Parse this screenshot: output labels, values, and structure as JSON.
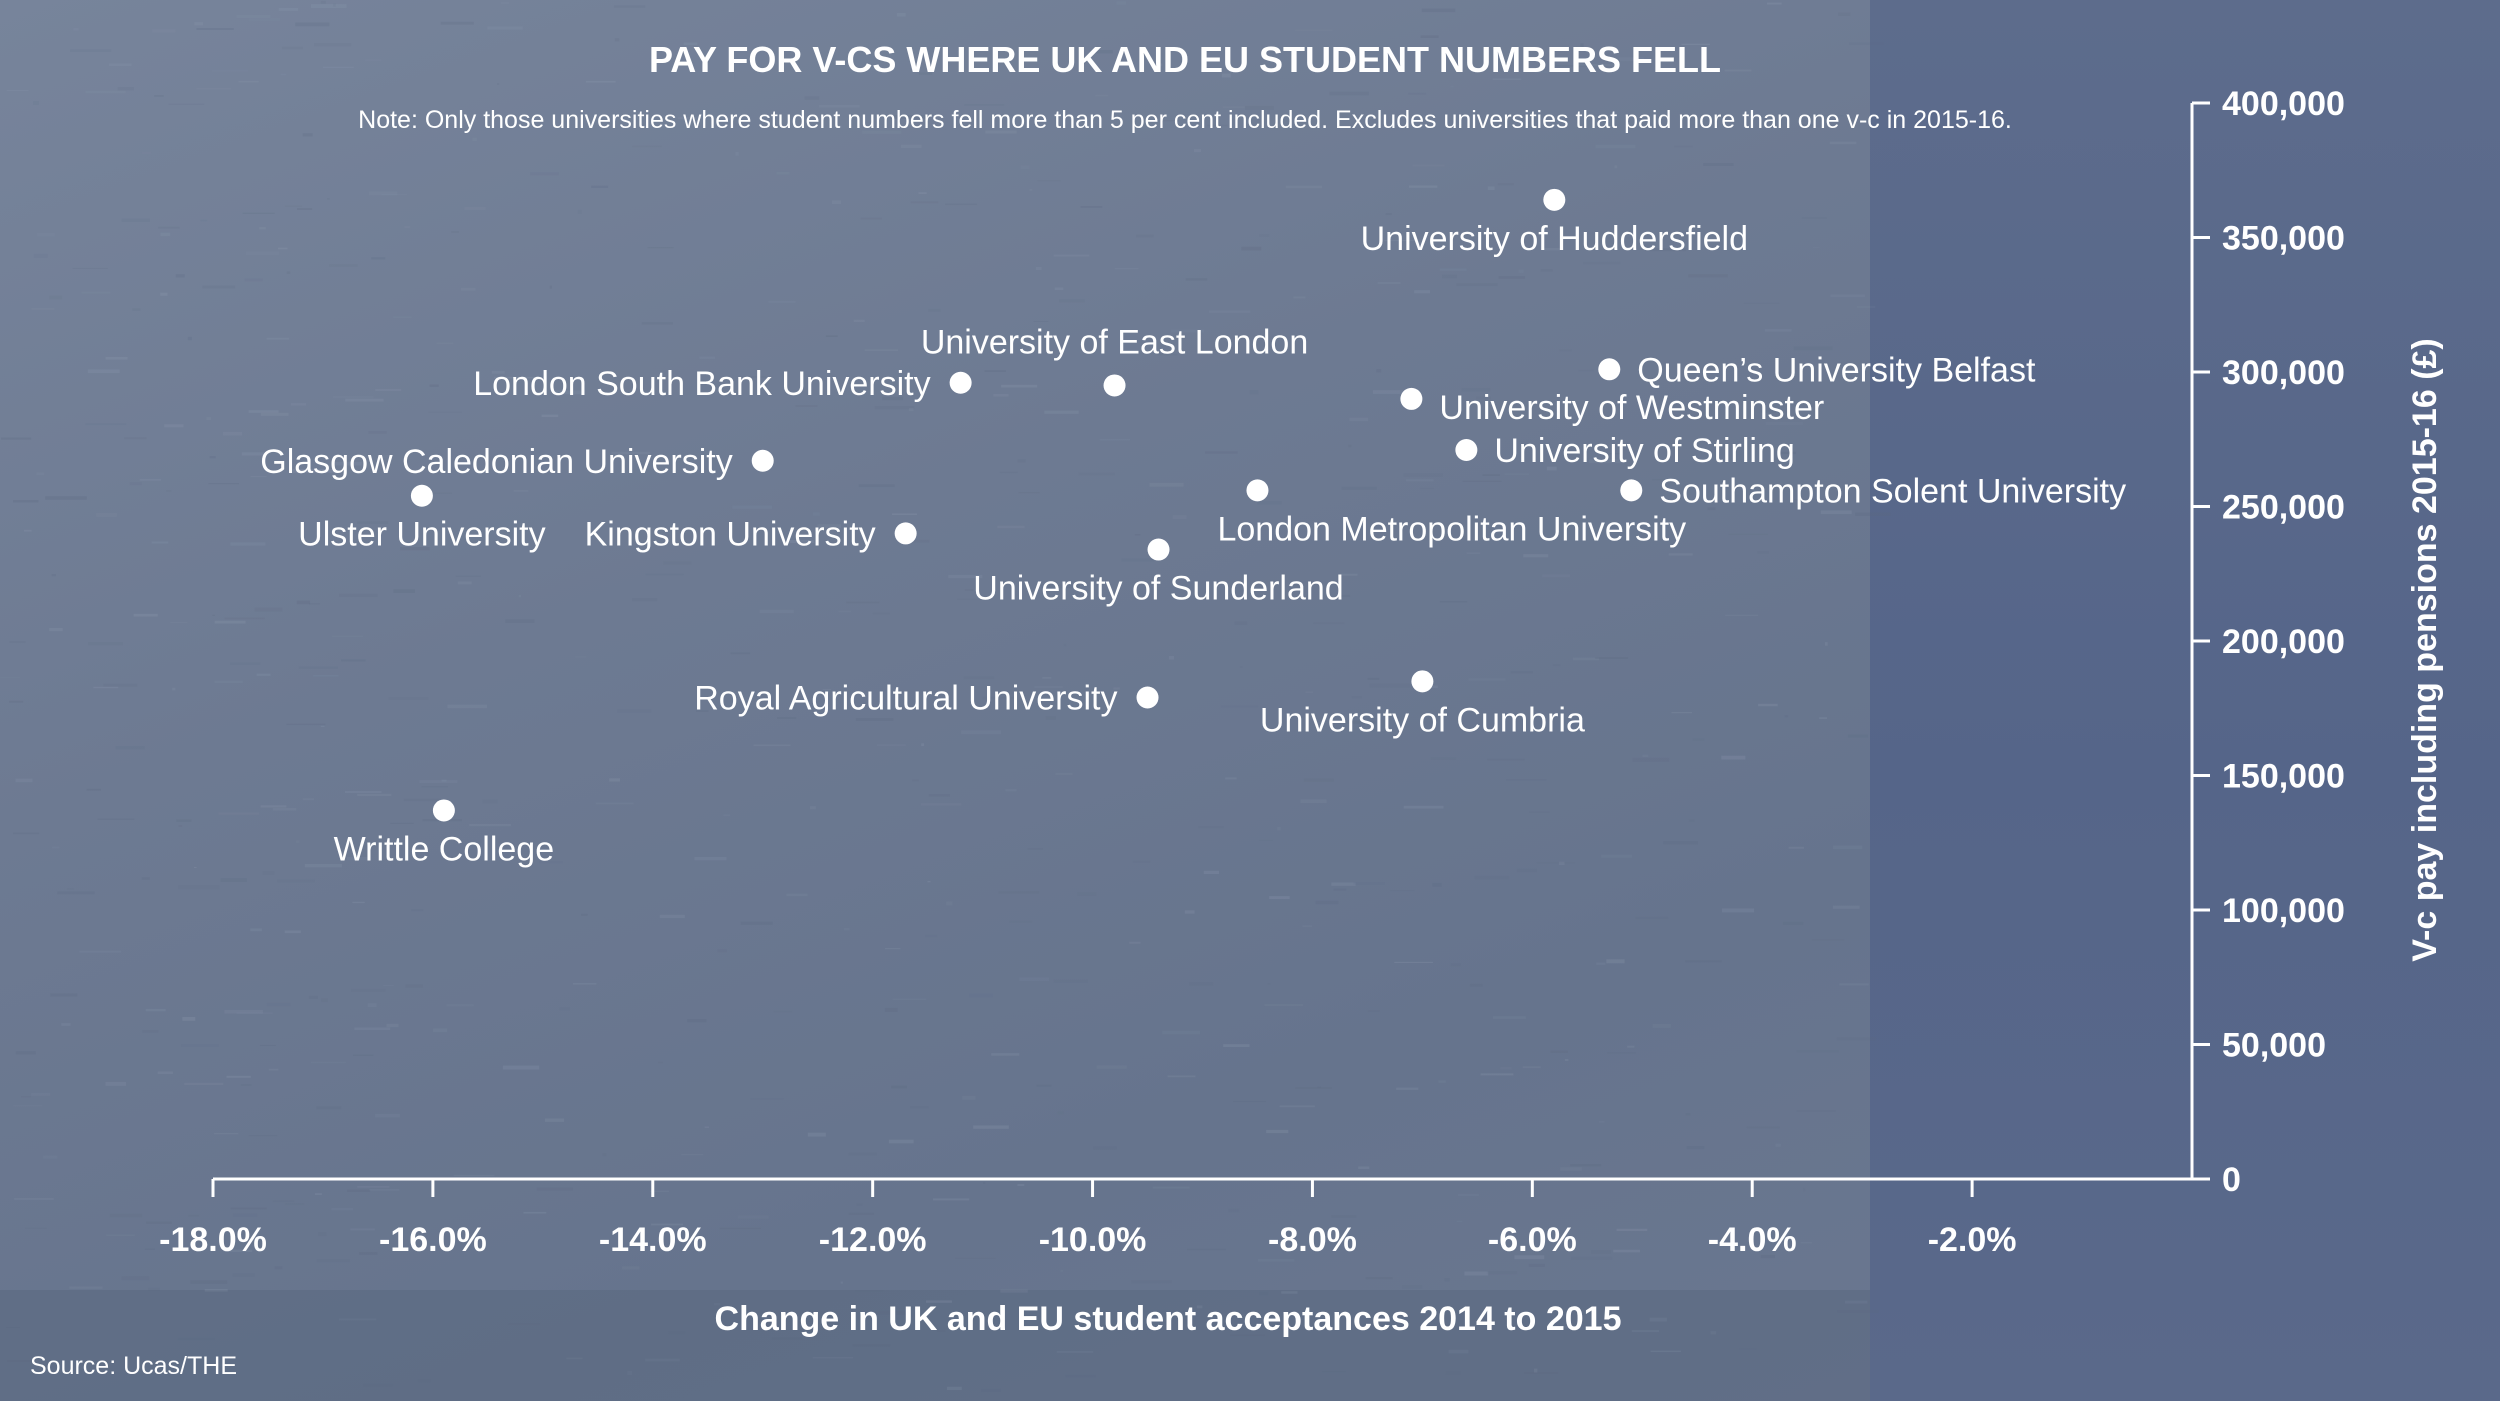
{
  "chart_data": {
    "type": "scatter",
    "title": "PAY FOR V-CS WHERE UK AND EU STUDENT NUMBERS FELL",
    "subtitle": "Note: Only those universities where student numbers fell more than 5 per cent included. Excludes universities that paid more than one v-c in 2015-16.",
    "xlabel": "Change in UK and EU student acceptances 2014 to 2015",
    "ylabel": "V-c pay including pensions 2015-16 (£)",
    "source": "Source: Ucas/THE",
    "xlim": [
      -18,
      0
    ],
    "ylim": [
      0,
      400000
    ],
    "x_ticks": [
      {
        "value": -18,
        "label": "-18.0%"
      },
      {
        "value": -16,
        "label": "-16.0%"
      },
      {
        "value": -14,
        "label": "-14.0%"
      },
      {
        "value": -12,
        "label": "-12.0%"
      },
      {
        "value": -10,
        "label": "-10.0%"
      },
      {
        "value": -8,
        "label": "-8.0%"
      },
      {
        "value": -6,
        "label": "-6.0%"
      },
      {
        "value": -4,
        "label": "-4.0%"
      },
      {
        "value": -2,
        "label": "-2.0%"
      }
    ],
    "y_ticks": [
      {
        "value": 0,
        "label": "0"
      },
      {
        "value": 50000,
        "label": "50,000"
      },
      {
        "value": 100000,
        "label": "100,000"
      },
      {
        "value": 150000,
        "label": "150,000"
      },
      {
        "value": 200000,
        "label": "200,000"
      },
      {
        "value": 250000,
        "label": "250,000"
      },
      {
        "value": 300000,
        "label": "300,000"
      },
      {
        "value": 350000,
        "label": "350,000"
      },
      {
        "value": 400000,
        "label": "400,000"
      }
    ],
    "points": [
      {
        "name": "University of Huddersfield",
        "x": -5.8,
        "y": 364000,
        "label_side": "below"
      },
      {
        "name": "University of East London",
        "x": -9.8,
        "y": 295000,
        "label_side": "above"
      },
      {
        "name": "London South Bank University",
        "x": -11.2,
        "y": 296000,
        "label_side": "left"
      },
      {
        "name": "Queen’s University Belfast",
        "x": -5.3,
        "y": 301000,
        "label_side": "right"
      },
      {
        "name": "University of Westminster",
        "x": -7.1,
        "y": 290000,
        "label_side": "right-below"
      },
      {
        "name": "University of Stirling",
        "x": -6.6,
        "y": 271000,
        "label_side": "right"
      },
      {
        "name": "Glasgow Caledonian University",
        "x": -13.0,
        "y": 267000,
        "label_side": "left"
      },
      {
        "name": "Southampton Solent University",
        "x": -5.1,
        "y": 256000,
        "label_side": "right"
      },
      {
        "name": "London Metropolitan University",
        "x": -8.5,
        "y": 256000,
        "label_side": "below-right"
      },
      {
        "name": "Ulster University",
        "x": -16.1,
        "y": 254000,
        "label_side": "below"
      },
      {
        "name": "Kingston University",
        "x": -11.7,
        "y": 240000,
        "label_side": "left"
      },
      {
        "name": "University of Sunderland",
        "x": -9.4,
        "y": 234000,
        "label_side": "below"
      },
      {
        "name": "University of Cumbria",
        "x": -7.0,
        "y": 185000,
        "label_side": "below"
      },
      {
        "name": "Royal Agricultural University",
        "x": -9.5,
        "y": 179000,
        "label_side": "left"
      },
      {
        "name": "Writtle College",
        "x": -15.9,
        "y": 137000,
        "label_side": "below"
      }
    ]
  },
  "colors": {
    "background": "#6c7a93",
    "background_right": "#586889",
    "marks": "#ffffff",
    "text": "#ffffff"
  }
}
